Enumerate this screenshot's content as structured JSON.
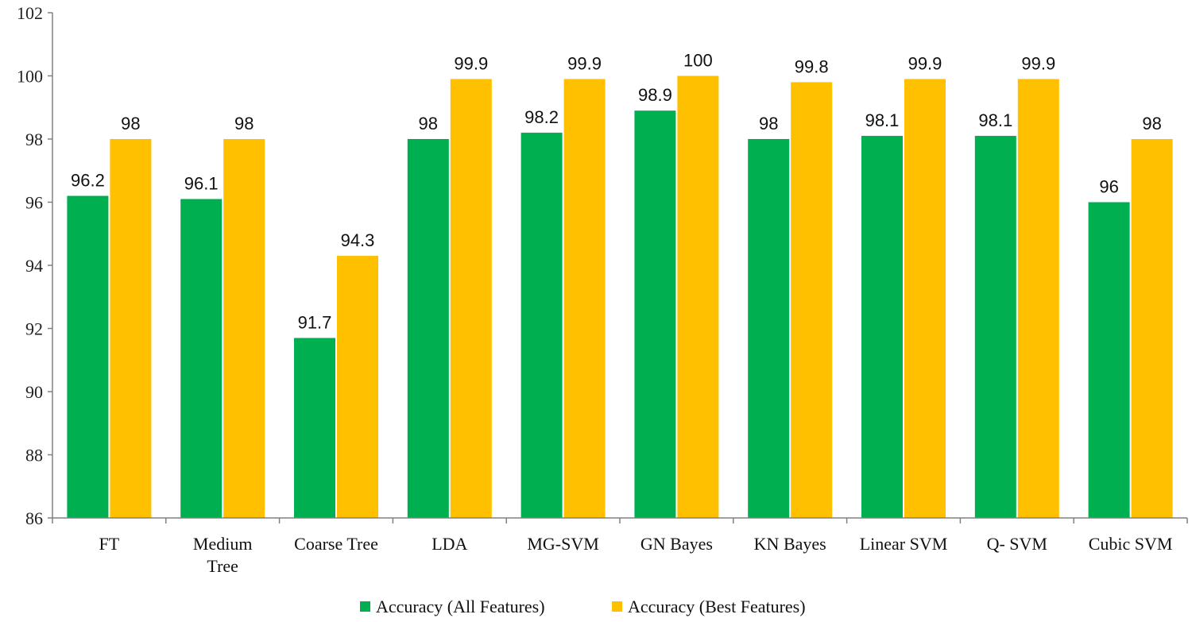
{
  "chart_data": {
    "type": "bar",
    "title": "",
    "xlabel": "",
    "ylabel": "",
    "ylim": [
      86,
      102
    ],
    "yticks": [
      86,
      88,
      90,
      92,
      94,
      96,
      98,
      100,
      102
    ],
    "grid": false,
    "legend_position": "bottom",
    "categories": [
      [
        "FT"
      ],
      [
        "Medium",
        "Tree"
      ],
      [
        "Coarse Tree"
      ],
      [
        "LDA"
      ],
      [
        "MG-SVM"
      ],
      [
        "GN Bayes"
      ],
      [
        "KN Bayes"
      ],
      [
        "Linear SVM"
      ],
      [
        "Q- SVM"
      ],
      [
        "Cubic SVM"
      ]
    ],
    "series": [
      {
        "name": "Accuracy (All Features)",
        "color": "#00b050",
        "values": [
          96.2,
          96.1,
          91.7,
          98,
          98.2,
          98.9,
          98,
          98.1,
          98.1,
          96
        ]
      },
      {
        "name": "Accuracy (Best Features)",
        "color": "#ffc000",
        "values": [
          98,
          98,
          94.3,
          99.9,
          99.9,
          100,
          99.8,
          99.9,
          99.9,
          98
        ]
      }
    ]
  }
}
